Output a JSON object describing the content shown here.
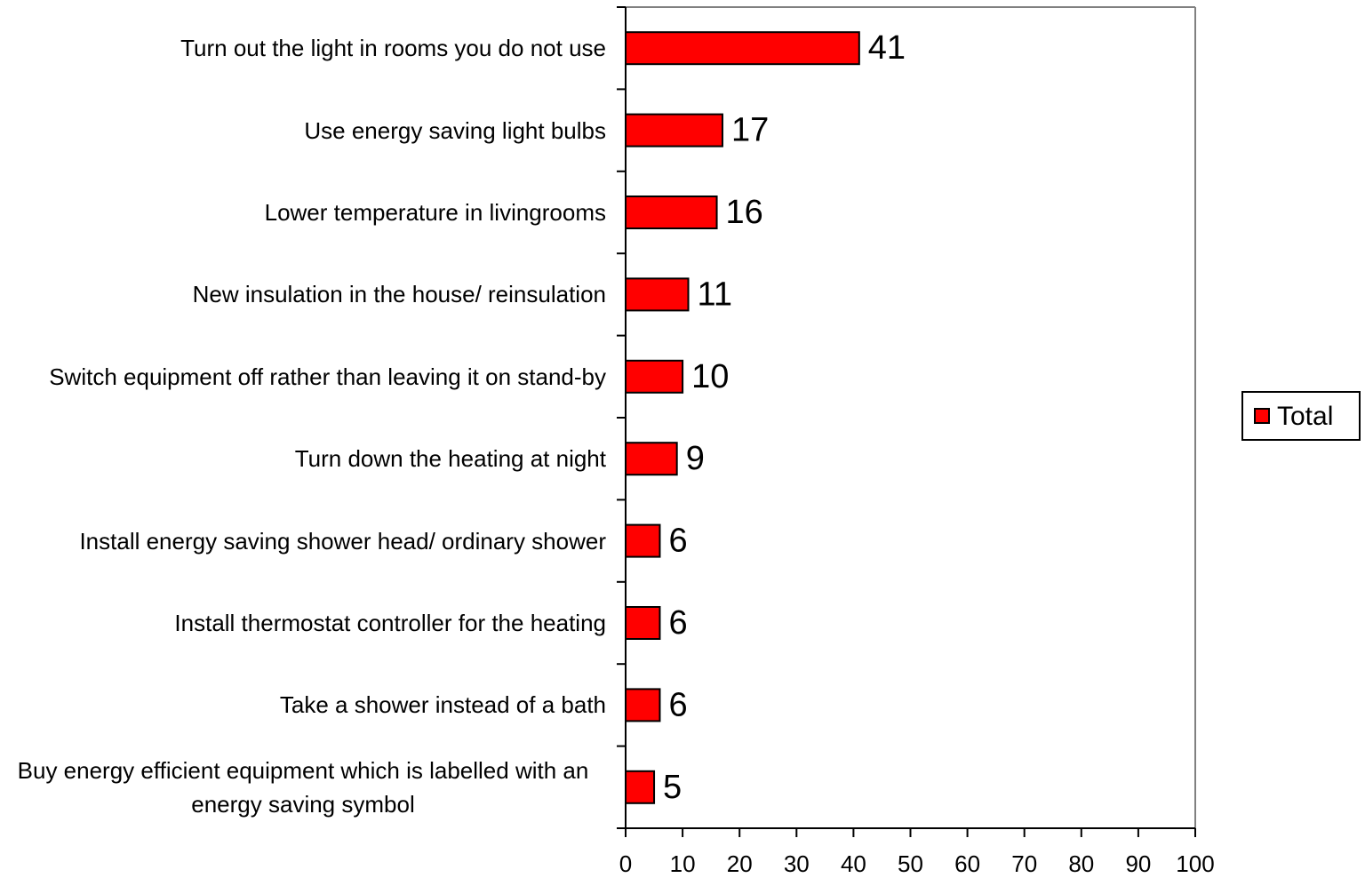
{
  "chart_data": {
    "type": "bar",
    "orientation": "horizontal",
    "categories": [
      "Turn out the light in rooms you do not use",
      "Use energy saving light bulbs",
      "Lower temperature in livingrooms",
      "New insulation in the house/ reinsulation",
      "Switch equipment off rather than leaving it on stand-by",
      "Turn down the heating at night",
      "Install energy saving shower head/ ordinary shower",
      "Install thermostat controller for the heating",
      "Take a shower instead of a bath",
      "Buy energy efficient equipment which is labelled with an energy saving symbol"
    ],
    "series": [
      {
        "name": "Total",
        "color": "#ff0000",
        "values": [
          41,
          17,
          16,
          11,
          10,
          9,
          6,
          6,
          6,
          5
        ]
      }
    ],
    "xlim": [
      0,
      100
    ],
    "xticks": [
      0,
      10,
      20,
      30,
      40,
      50,
      60,
      70,
      80,
      90,
      100
    ],
    "legend": "right"
  }
}
